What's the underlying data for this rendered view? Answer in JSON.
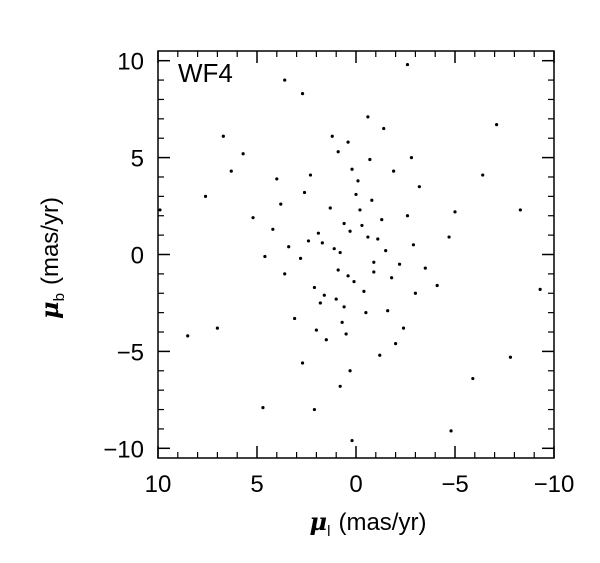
{
  "chart_data": {
    "type": "scatter",
    "title": "",
    "panel_label": "WF4",
    "xlabel": {
      "symbol": "μ",
      "subscript": "l",
      "unit": "(mas/yr)"
    },
    "ylabel": {
      "symbol": "μ",
      "subscript": "b",
      "unit": "(mas/yr)"
    },
    "xlim": [
      10,
      -10
    ],
    "ylim": [
      -10.5,
      10.5
    ],
    "x_reversed": true,
    "x_ticks": [
      10,
      5,
      0,
      -5,
      -10
    ],
    "x_tick_labels": [
      "10",
      "5",
      "0",
      "−5",
      "−10"
    ],
    "y_ticks": [
      10,
      5,
      0,
      -5,
      -10
    ],
    "y_tick_labels": [
      "10",
      "5",
      "0",
      "−5",
      "−10"
    ],
    "grid": false,
    "marker_color": "#000000",
    "series": [
      {
        "values_x": [
          1.1,
          -0.6,
          -0.9,
          0.4,
          0.6,
          -1.5,
          0.9,
          2.4,
          -0.4,
          -0.2,
          0.8,
          -2.2,
          0.3,
          1.6,
          -1.3,
          0.1,
          2.8,
          -0.8,
          1.9,
          -2.9,
          0.6,
          -1.8,
          3.4,
          0.0,
          -0.5,
          1.3,
          -3.5,
          2.1,
          -1.1,
          0.7,
          4.2,
          -2.6,
          1.8,
          -0.1,
          -4.1,
          0.5,
          2.6,
          -1.6,
          3.1,
          -3.2,
          0.2,
          1.5,
          -0.7,
          4.6,
          -2.0,
          0.9,
          -4.7,
          2.3,
          -1.2,
          3.8,
          1.0,
          -0.3,
          -2.4,
          2.0,
          0.4,
          -1.9,
          3.6,
          -0.9,
          1.2,
          -3.0,
          5.2,
          0.3,
          -5.0,
          2.7,
          -1.4,
          1.7,
          -2.8,
          0.8,
          4.0,
          -0.6,
          6.3,
          -6.4,
          7.0,
          7.6,
          -7.8,
          9.9,
          -9.3,
          8.5,
          -8.3,
          6.7,
          -7.1,
          3.6,
          -2.6,
          2.1,
          4.7,
          -4.8,
          5.7,
          -5.9,
          0.2,
          2.7
        ],
        "values_y": [
          0.3,
          0.9,
          -0.4,
          -1.1,
          1.6,
          0.2,
          -0.8,
          0.7,
          -1.9,
          2.3,
          0.1,
          -0.5,
          1.2,
          -2.1,
          1.8,
          -1.4,
          -0.2,
          2.8,
          1.1,
          0.5,
          -2.7,
          -1.2,
          0.4,
          3.1,
          -3.0,
          2.4,
          -0.7,
          -1.7,
          0.8,
          -3.5,
          1.3,
          2.0,
          -2.5,
          3.8,
          -1.6,
          -4.1,
          3.2,
          -2.9,
          -3.3,
          3.5,
          4.4,
          -4.4,
          4.9,
          -0.1,
          -4.6,
          5.3,
          0.9,
          4.1,
          -5.2,
          2.6,
          -2.3,
          1.5,
          -3.8,
          -3.9,
          5.8,
          4.3,
          -1.0,
          -0.9,
          6.1,
          -2.0,
          1.9,
          -6.0,
          2.2,
          -5.6,
          6.5,
          0.6,
          5.0,
          -6.8,
          3.9,
          7.1,
          4.3,
          4.1,
          -3.8,
          3.0,
          -5.3,
          2.3,
          -1.8,
          -4.2,
          2.3,
          6.1,
          6.7,
          9.0,
          9.8,
          -8.0,
          -7.9,
          -9.1,
          5.2,
          -6.4,
          -9.6,
          8.3
        ]
      }
    ]
  }
}
